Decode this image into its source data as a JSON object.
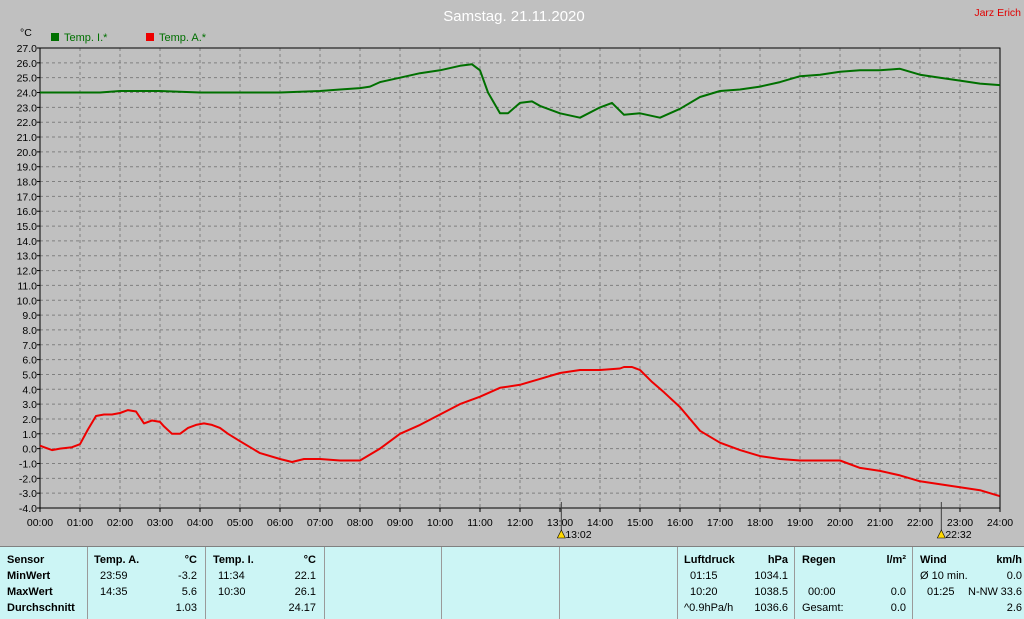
{
  "header": {
    "title": "Samstag. 21.11.2020",
    "author": "Jarz Erich"
  },
  "chart_data": {
    "type": "line",
    "title": "Samstag. 21.11.2020",
    "ylabel": "°C",
    "ylim": [
      -4.0,
      27.0
    ],
    "yticks": [
      "27.0",
      "26.0",
      "25.0",
      "24.0",
      "23.0",
      "22.0",
      "21.0",
      "20.0",
      "19.0",
      "18.0",
      "17.0",
      "16.0",
      "15.0",
      "14.0",
      "13.0",
      "12.0",
      "11.0",
      "10.0",
      "9.0",
      "8.0",
      "7.0",
      "6.0",
      "5.0",
      "4.0",
      "3.0",
      "2.0",
      "1.0",
      "0.0",
      "-1.0",
      "-2.0",
      "-3.0",
      "-4.0"
    ],
    "xticks": [
      "00:00",
      "01:00",
      "02:00",
      "03:00",
      "04:00",
      "05:00",
      "06:00",
      "07:00",
      "08:00",
      "09:00",
      "10:00",
      "11:00",
      "12:00",
      "13:00",
      "14:00",
      "15:00",
      "16:00",
      "17:00",
      "18:00",
      "19:00",
      "20:00",
      "21:00",
      "22:00",
      "23:00",
      "24:00"
    ],
    "grid": true,
    "legend_position": "top-left",
    "series": [
      {
        "name": "Temp. I.*",
        "color": "#007000",
        "x": [
          0,
          0.5,
          1,
          1.5,
          2,
          2.5,
          3,
          4,
          5,
          6,
          7,
          7.5,
          8,
          8.25,
          8.5,
          9,
          9.5,
          10,
          10.5,
          10.8,
          11,
          11.2,
          11.5,
          11.7,
          12,
          12.3,
          12.5,
          13,
          13.5,
          14,
          14.3,
          14.6,
          15,
          15.5,
          16,
          16.5,
          17,
          17.5,
          18,
          18.5,
          19,
          19.5,
          20,
          20.5,
          21,
          21.5,
          22,
          22.5,
          23,
          23.5,
          24
        ],
        "y": [
          24.0,
          24.0,
          24.0,
          24.0,
          24.1,
          24.1,
          24.1,
          24.0,
          24.0,
          24.0,
          24.1,
          24.2,
          24.3,
          24.4,
          24.7,
          25.0,
          25.3,
          25.5,
          25.8,
          25.9,
          25.5,
          24.0,
          22.6,
          22.6,
          23.3,
          23.4,
          23.1,
          22.6,
          22.3,
          23.0,
          23.3,
          22.5,
          22.6,
          22.3,
          22.9,
          23.7,
          24.1,
          24.2,
          24.4,
          24.7,
          25.1,
          25.2,
          25.4,
          25.5,
          25.5,
          25.6,
          25.2,
          25.0,
          24.8,
          24.6,
          24.5
        ]
      },
      {
        "name": "Temp. A.*",
        "color": "#ee0000",
        "x": [
          0,
          0.1,
          0.3,
          0.5,
          0.8,
          1,
          1.2,
          1.4,
          1.6,
          1.8,
          2,
          2.2,
          2.4,
          2.6,
          2.8,
          3,
          3.1,
          3.3,
          3.5,
          3.7,
          3.9,
          4.1,
          4.3,
          4.5,
          4.7,
          5,
          5.5,
          6,
          6.3,
          6.6,
          7,
          7.5,
          8,
          8.5,
          9,
          9.5,
          10,
          10.5,
          11,
          11.5,
          12,
          12.5,
          13,
          13.5,
          14,
          14.5,
          14.6,
          14.8,
          15,
          15.3,
          15.6,
          16,
          16.5,
          17,
          17.5,
          18,
          18.5,
          19,
          19.5,
          20,
          20.5,
          21,
          21.5,
          22,
          22.5,
          23,
          23.5,
          23.99
        ],
        "y": [
          0.2,
          0.1,
          -0.1,
          0.0,
          0.1,
          0.3,
          1.3,
          2.2,
          2.3,
          2.3,
          2.4,
          2.6,
          2.5,
          1.7,
          1.9,
          1.8,
          1.5,
          1.0,
          1.0,
          1.4,
          1.6,
          1.7,
          1.6,
          1.4,
          1.0,
          0.5,
          -0.3,
          -0.7,
          -0.9,
          -0.7,
          -0.7,
          -0.8,
          -0.8,
          0.0,
          1.0,
          1.6,
          2.3,
          3.0,
          3.5,
          4.1,
          4.3,
          4.7,
          5.1,
          5.3,
          5.3,
          5.4,
          5.5,
          5.5,
          5.3,
          4.5,
          3.8,
          2.8,
          1.2,
          0.4,
          -0.1,
          -0.5,
          -0.7,
          -0.8,
          -0.8,
          -0.8,
          -1.3,
          -1.5,
          -1.8,
          -2.2,
          -2.4,
          -2.6,
          -2.8,
          -3.2
        ]
      }
    ],
    "annotations": [
      {
        "time": "13:02"
      },
      {
        "time": "22:32"
      }
    ]
  },
  "panel": {
    "sensor": {
      "header": "Sensor",
      "rows": [
        "MinWert",
        "MaxWert",
        "Durchschnitt"
      ]
    },
    "temp_a": {
      "header": "Temp. A.",
      "unit": "°C",
      "min_time": "23:59",
      "min_val": "-3.2",
      "max_time": "14:35",
      "max_val": "5.6",
      "avg": "1.03"
    },
    "temp_i": {
      "header": "Temp. I.",
      "unit": "°C",
      "min_time": "11:34",
      "min_val": "22.1",
      "max_time": "10:30",
      "max_val": "26.1",
      "avg": "24.17"
    },
    "pressure": {
      "header": "Luftdruck",
      "unit": "hPa",
      "min_time": "01:15",
      "min_val": "1034.1",
      "max_time": "10:20",
      "max_val": "1038.5",
      "trend": "^0.9hPa/h",
      "avg": "1036.6"
    },
    "rain": {
      "header": "Regen",
      "unit": "l/m²",
      "time": "00:00",
      "val": "0.0",
      "total_label": "Gesamt:",
      "total": "0.0",
      "row1_val": "0.0"
    },
    "wind": {
      "header": "Wind",
      "unit": "km/h",
      "avg_label": "Ø 10 min.",
      "avg_val": "0.0",
      "max_time": "01:25",
      "max_dir": "N-NW",
      "max_val": "33.6",
      "mean": "2.6"
    }
  }
}
